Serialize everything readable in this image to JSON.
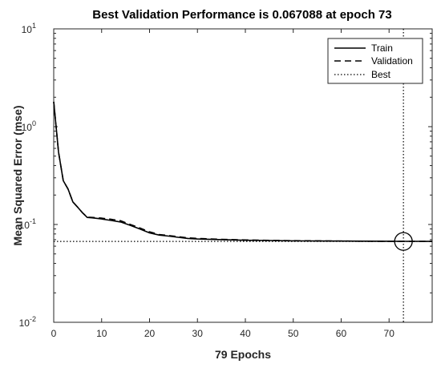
{
  "chart_data": {
    "type": "line",
    "title": "Best Validation Performance is 0.067088 at epoch 73",
    "xlabel": "79 Epochs",
    "ylabel": "Mean Squared Error  (mse)",
    "xlim": [
      0,
      79
    ],
    "ylim": [
      0.01,
      10
    ],
    "yscale": "log",
    "grid": false,
    "legend_position": "top-right",
    "x_ticks": [
      0,
      10,
      20,
      30,
      40,
      50,
      60,
      70
    ],
    "y_ticks": [
      {
        "value": 10,
        "base": "10",
        "exp": "1"
      },
      {
        "value": 1,
        "base": "10",
        "exp": "0"
      },
      {
        "value": 0.1,
        "base": "10",
        "exp": "-1"
      },
      {
        "value": 0.01,
        "base": "10",
        "exp": "-2"
      }
    ],
    "series": [
      {
        "name": "Train",
        "style": "solid",
        "color": "#000000",
        "x": [
          0,
          1,
          2,
          3,
          4,
          5,
          6,
          7,
          8,
          10,
          12,
          14,
          16,
          18,
          20,
          22,
          24,
          26,
          28,
          30,
          35,
          40,
          45,
          50,
          55,
          60,
          65,
          70,
          73,
          75,
          79
        ],
        "y": [
          1.8,
          0.55,
          0.28,
          0.23,
          0.17,
          0.15,
          0.132,
          0.118,
          0.117,
          0.114,
          0.11,
          0.106,
          0.098,
          0.09,
          0.082,
          0.078,
          0.076,
          0.074,
          0.072,
          0.071,
          0.07,
          0.069,
          0.0685,
          0.068,
          0.0678,
          0.0676,
          0.0675,
          0.0674,
          0.0673,
          0.0673,
          0.0672
        ]
      },
      {
        "name": "Validation",
        "style": "dashed",
        "color": "#000000",
        "x": [
          0,
          1,
          2,
          3,
          4,
          5,
          6,
          7,
          8,
          10,
          12,
          14,
          16,
          18,
          20,
          22,
          24,
          26,
          28,
          30,
          35,
          40,
          45,
          50,
          55,
          60,
          65,
          70,
          73,
          75,
          79
        ],
        "y": [
          1.8,
          0.55,
          0.28,
          0.23,
          0.17,
          0.15,
          0.132,
          0.119,
          0.118,
          0.116,
          0.113,
          0.109,
          0.1,
          0.092,
          0.084,
          0.079,
          0.077,
          0.075,
          0.073,
          0.072,
          0.0705,
          0.0695,
          0.0688,
          0.0683,
          0.068,
          0.0677,
          0.0675,
          0.0672,
          0.067088,
          0.0672,
          0.0672
        ]
      },
      {
        "name": "Best",
        "style": "dotted",
        "color": "#000000",
        "best_epoch": 73,
        "best_value": 0.067088
      }
    ]
  }
}
